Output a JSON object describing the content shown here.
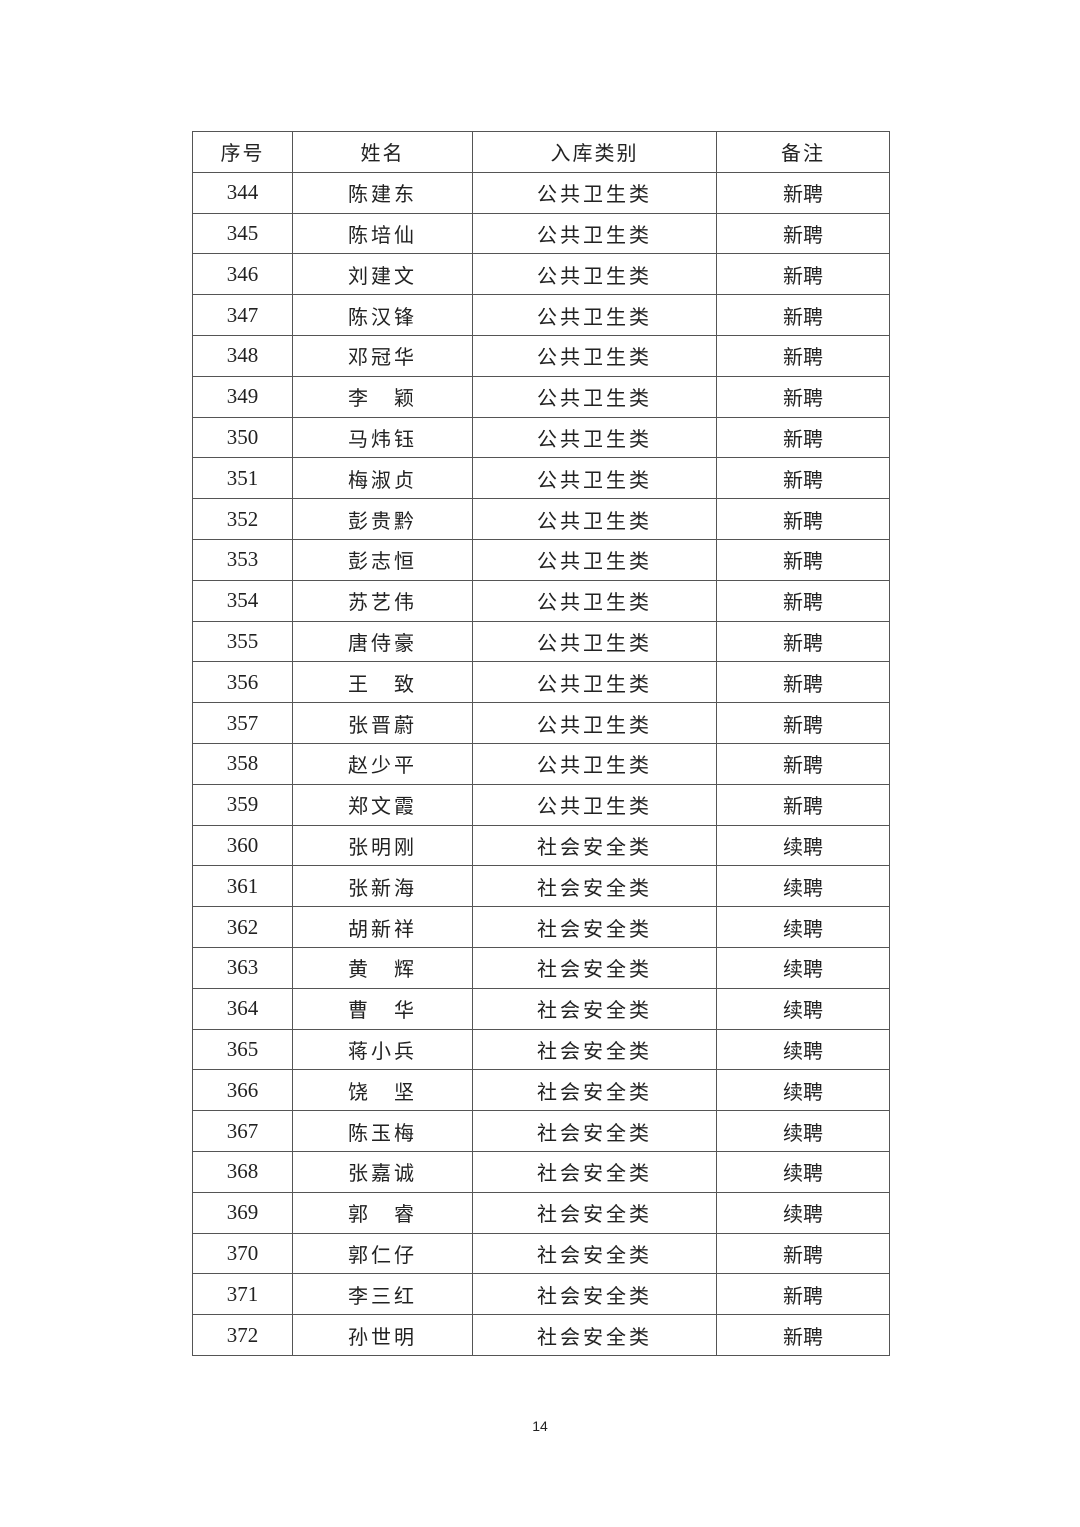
{
  "table": {
    "headers": [
      "序号",
      "姓名",
      "入库类别",
      "备注"
    ],
    "rows": [
      [
        "344",
        "陈建东",
        "公共卫生类",
        "新聘"
      ],
      [
        "345",
        "陈培仙",
        "公共卫生类",
        "新聘"
      ],
      [
        "346",
        "刘建文",
        "公共卫生类",
        "新聘"
      ],
      [
        "347",
        "陈汉锋",
        "公共卫生类",
        "新聘"
      ],
      [
        "348",
        "邓冠华",
        "公共卫生类",
        "新聘"
      ],
      [
        "349",
        "李　颖",
        "公共卫生类",
        "新聘"
      ],
      [
        "350",
        "马炜钰",
        "公共卫生类",
        "新聘"
      ],
      [
        "351",
        "梅淑贞",
        "公共卫生类",
        "新聘"
      ],
      [
        "352",
        "彭贵黔",
        "公共卫生类",
        "新聘"
      ],
      [
        "353",
        "彭志恒",
        "公共卫生类",
        "新聘"
      ],
      [
        "354",
        "苏艺伟",
        "公共卫生类",
        "新聘"
      ],
      [
        "355",
        "唐侍豪",
        "公共卫生类",
        "新聘"
      ],
      [
        "356",
        "王　致",
        "公共卫生类",
        "新聘"
      ],
      [
        "357",
        "张晋蔚",
        "公共卫生类",
        "新聘"
      ],
      [
        "358",
        "赵少平",
        "公共卫生类",
        "新聘"
      ],
      [
        "359",
        "郑文霞",
        "公共卫生类",
        "新聘"
      ],
      [
        "360",
        "张明刚",
        "社会安全类",
        "续聘"
      ],
      [
        "361",
        "张新海",
        "社会安全类",
        "续聘"
      ],
      [
        "362",
        "胡新祥",
        "社会安全类",
        "续聘"
      ],
      [
        "363",
        "黄　辉",
        "社会安全类",
        "续聘"
      ],
      [
        "364",
        "曹　华",
        "社会安全类",
        "续聘"
      ],
      [
        "365",
        "蒋小兵",
        "社会安全类",
        "续聘"
      ],
      [
        "366",
        "饶　坚",
        "社会安全类",
        "续聘"
      ],
      [
        "367",
        "陈玉梅",
        "社会安全类",
        "续聘"
      ],
      [
        "368",
        "张嘉诚",
        "社会安全类",
        "续聘"
      ],
      [
        "369",
        "郭　睿",
        "社会安全类",
        "续聘"
      ],
      [
        "370",
        "郭仁仔",
        "社会安全类",
        "新聘"
      ],
      [
        "371",
        "李三红",
        "社会安全类",
        "新聘"
      ],
      [
        "372",
        "孙世明",
        "社会安全类",
        "新聘"
      ]
    ]
  },
  "page_number": "14"
}
